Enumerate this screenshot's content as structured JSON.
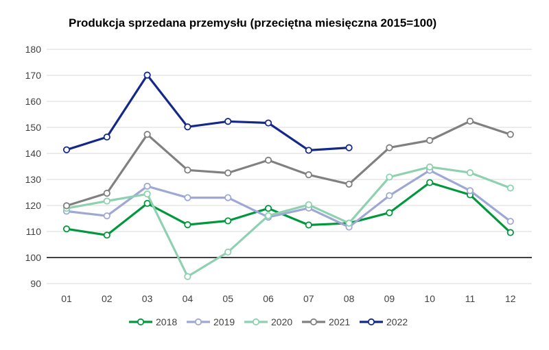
{
  "chart_data": {
    "type": "line",
    "title": "Produkcja sprzedana przemysłu (przeciętna miesięczna 2015=100)",
    "xlabel": "",
    "ylabel": "",
    "categories": [
      "01",
      "02",
      "03",
      "04",
      "05",
      "06",
      "07",
      "08",
      "09",
      "10",
      "11",
      "12"
    ],
    "ylim": [
      90,
      180
    ],
    "yticks": [
      90,
      100,
      110,
      120,
      130,
      140,
      150,
      160,
      170,
      180
    ],
    "reference_line": 100,
    "grid": true,
    "legend_position": "bottom",
    "series": [
      {
        "name": "2018",
        "color": "#00973d",
        "values": [
          111.0,
          108.6,
          120.8,
          112.6,
          114.1,
          118.9,
          112.5,
          113.2,
          117.2,
          128.8,
          124.1,
          109.6
        ]
      },
      {
        "name": "2019",
        "color": "#9ea8d4",
        "values": [
          117.8,
          116.0,
          127.4,
          123.0,
          123.0,
          115.5,
          119.0,
          111.7,
          123.8,
          133.5,
          125.7,
          113.9
        ]
      },
      {
        "name": "2020",
        "color": "#8ed1b0",
        "values": [
          118.9,
          121.7,
          124.4,
          92.7,
          102.1,
          116.1,
          120.3,
          113.2,
          130.9,
          134.8,
          132.6,
          126.7
        ]
      },
      {
        "name": "2021",
        "color": "#808080",
        "values": [
          119.9,
          124.7,
          147.3,
          133.6,
          132.5,
          137.4,
          131.8,
          128.2,
          142.2,
          145.0,
          152.4,
          147.3
        ]
      },
      {
        "name": "2022",
        "color": "#14288a",
        "values": [
          141.4,
          146.3,
          170.1,
          150.2,
          152.3,
          151.7,
          141.2,
          142.2,
          null,
          null,
          null,
          null
        ]
      }
    ]
  }
}
